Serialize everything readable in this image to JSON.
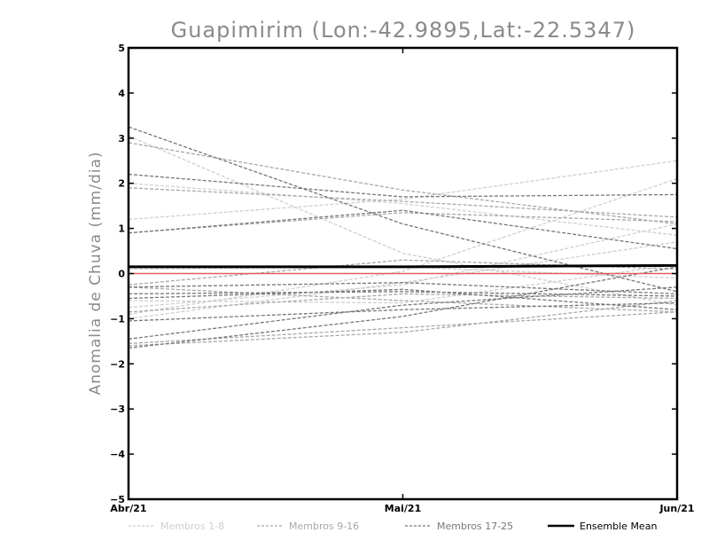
{
  "chart_data": {
    "type": "line",
    "title": "Guapimirim (Lon:-42.9895,Lat:-22.5347)",
    "xlabel": "",
    "ylabel": "Anomalia de Chuva (mm/dia)",
    "categories": [
      "Abr/21",
      "Mai/21",
      "Jun/21"
    ],
    "ylim": [
      -5,
      5
    ],
    "yticks": [
      -5,
      -4,
      -3,
      -2,
      -1,
      0,
      1,
      2,
      3,
      4,
      5
    ],
    "grid": false,
    "legend_position": "bottom",
    "colors": {
      "group1": "#cfcfcf",
      "group2": "#a8a8a8",
      "group3": "#777777",
      "mean": "#000000",
      "zero": "#e06060"
    },
    "legend": [
      {
        "label": "Membros 1-8",
        "group": "group1"
      },
      {
        "label": "Membros 9-16",
        "group": "group2"
      },
      {
        "label": "Membros 17-25",
        "group": "group3"
      },
      {
        "label": "Ensemble Mean",
        "group": "mean"
      }
    ],
    "series": [
      {
        "group": "group1",
        "values": [
          3.05,
          0.45,
          -0.7
        ]
      },
      {
        "group": "group1",
        "values": [
          1.2,
          1.65,
          2.5
        ]
      },
      {
        "group": "group1",
        "values": [
          2.0,
          1.55,
          0.85
        ]
      },
      {
        "group": "group1",
        "values": [
          -0.9,
          0.05,
          2.1
        ]
      },
      {
        "group": "group1",
        "values": [
          -1.0,
          -0.2,
          0.7
        ]
      },
      {
        "group": "group1",
        "values": [
          -0.6,
          -0.65,
          0.2
        ]
      },
      {
        "group": "group1",
        "values": [
          0.1,
          0.15,
          -0.1
        ]
      },
      {
        "group": "group1",
        "values": [
          -0.75,
          -0.25,
          1.1
        ]
      },
      {
        "group": "group2",
        "values": [
          2.9,
          1.85,
          1.1
        ]
      },
      {
        "group": "group2",
        "values": [
          1.9,
          1.6,
          1.25
        ]
      },
      {
        "group": "group2",
        "values": [
          0.9,
          1.35,
          1.15
        ]
      },
      {
        "group": "group2",
        "values": [
          -0.3,
          -0.6,
          -0.85
        ]
      },
      {
        "group": "group2",
        "values": [
          -1.55,
          -1.2,
          -0.85
        ]
      },
      {
        "group": "group2",
        "values": [
          -1.6,
          -1.3,
          -0.6
        ]
      },
      {
        "group": "group2",
        "values": [
          -0.25,
          0.3,
          0.1
        ]
      },
      {
        "group": "group2",
        "values": [
          -0.85,
          -0.45,
          -0.55
        ]
      },
      {
        "group": "group3",
        "values": [
          3.25,
          1.1,
          -0.4
        ]
      },
      {
        "group": "group3",
        "values": [
          2.2,
          1.7,
          1.75
        ]
      },
      {
        "group": "group3",
        "values": [
          0.9,
          1.4,
          0.55
        ]
      },
      {
        "group": "group3",
        "values": [
          -0.45,
          -0.4,
          -0.5
        ]
      },
      {
        "group": "group3",
        "values": [
          -1.05,
          -0.8,
          -0.65
        ]
      },
      {
        "group": "group3",
        "values": [
          -1.65,
          -0.95,
          0.15
        ]
      },
      {
        "group": "group3",
        "values": [
          -0.3,
          -0.2,
          -0.45
        ]
      },
      {
        "group": "group3",
        "values": [
          -1.45,
          -0.7,
          -0.3
        ]
      },
      {
        "group": "group3",
        "values": [
          -0.55,
          -0.35,
          -0.8
        ]
      }
    ],
    "mean": {
      "values": [
        0.15,
        0.15,
        0.18
      ]
    },
    "reference_line": {
      "value": 0
    }
  }
}
